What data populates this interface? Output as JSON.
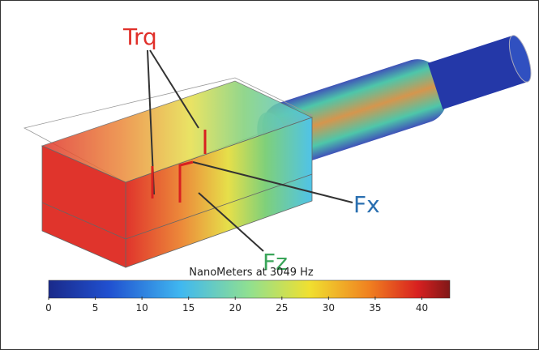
{
  "labels": {
    "torque": "Trq",
    "force_x": "Fx",
    "force_z": "Fz"
  },
  "colorbar": {
    "title": "NanoMeters at 3049 Hz",
    "lim": [
      0,
      43
    ],
    "ticks": [
      0,
      5,
      10,
      15,
      20,
      25,
      30,
      35,
      40
    ]
  }
}
